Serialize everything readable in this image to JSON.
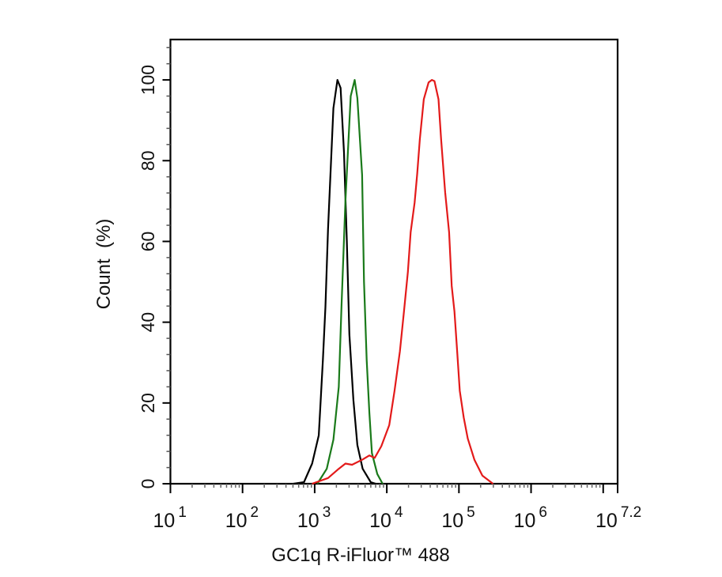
{
  "chart_data": {
    "type": "line",
    "title": "",
    "xlabel": "GC1q R-iFluor™ 488",
    "ylabel": "Count  (%)",
    "x_scale": "log",
    "xlim": [
      10,
      15848932
    ],
    "ylim": [
      0,
      110
    ],
    "grid": false,
    "legend": "none",
    "x_ticks": [
      {
        "base": "10",
        "exp": "1"
      },
      {
        "base": "10",
        "exp": "2"
      },
      {
        "base": "10",
        "exp": "3"
      },
      {
        "base": "10",
        "exp": "4"
      },
      {
        "base": "10",
        "exp": "5"
      },
      {
        "base": "10",
        "exp": "6"
      },
      {
        "base": "10",
        "exp": "7.2"
      }
    ],
    "y_ticks": [
      "0",
      "20",
      "40",
      "60",
      "80",
      "100"
    ],
    "series": [
      {
        "color": "#000000",
        "x": [
          509,
          710,
          923,
          1140,
          1300,
          1410,
          1530,
          1820,
          2070,
          2290,
          2550,
          2790,
          3030,
          3440,
          3910,
          4630,
          5980,
          7020
        ],
        "y": [
          0,
          0.4,
          5,
          12,
          30.6,
          43.7,
          63,
          93,
          100,
          98,
          82,
          60,
          37,
          20.7,
          9.6,
          3.7,
          0.4,
          0
        ]
      },
      {
        "color": "#1a7a1a",
        "x": [
          1090,
          1470,
          1820,
          2160,
          2350,
          2670,
          3160,
          3590,
          3910,
          4550,
          4830,
          5260,
          5730,
          6220,
          7380,
          8750
        ],
        "y": [
          0,
          3.7,
          10.9,
          24,
          43.7,
          70,
          96,
          100,
          95.5,
          76.5,
          50,
          30.6,
          17.5,
          7.6,
          2.4,
          0
        ]
      },
      {
        "color": "#e31a1a",
        "x": [
          923,
          1530,
          2160,
          2670,
          3300,
          4630,
          5730,
          6790,
          8390,
          10800,
          12800,
          15200,
          17300,
          19600,
          21400,
          24300,
          26400,
          28700,
          32600,
          38000,
          42100,
          45800,
          52100,
          56600,
          64400,
          73100,
          79400,
          86700,
          94400,
          102600,
          116400,
          132400,
          164100,
          211300,
          296500
        ],
        "y": [
          0,
          1.4,
          3.7,
          5.0,
          4.7,
          6.0,
          7.0,
          6.4,
          9.3,
          14.5,
          23,
          32.8,
          42.6,
          52.5,
          62.3,
          69.6,
          76.8,
          85.3,
          95.2,
          99.4,
          100,
          99.7,
          95.2,
          85.3,
          72.2,
          62.3,
          49,
          42.6,
          32.8,
          23,
          16.4,
          11.2,
          5.9,
          2.0,
          0
        ]
      }
    ]
  }
}
